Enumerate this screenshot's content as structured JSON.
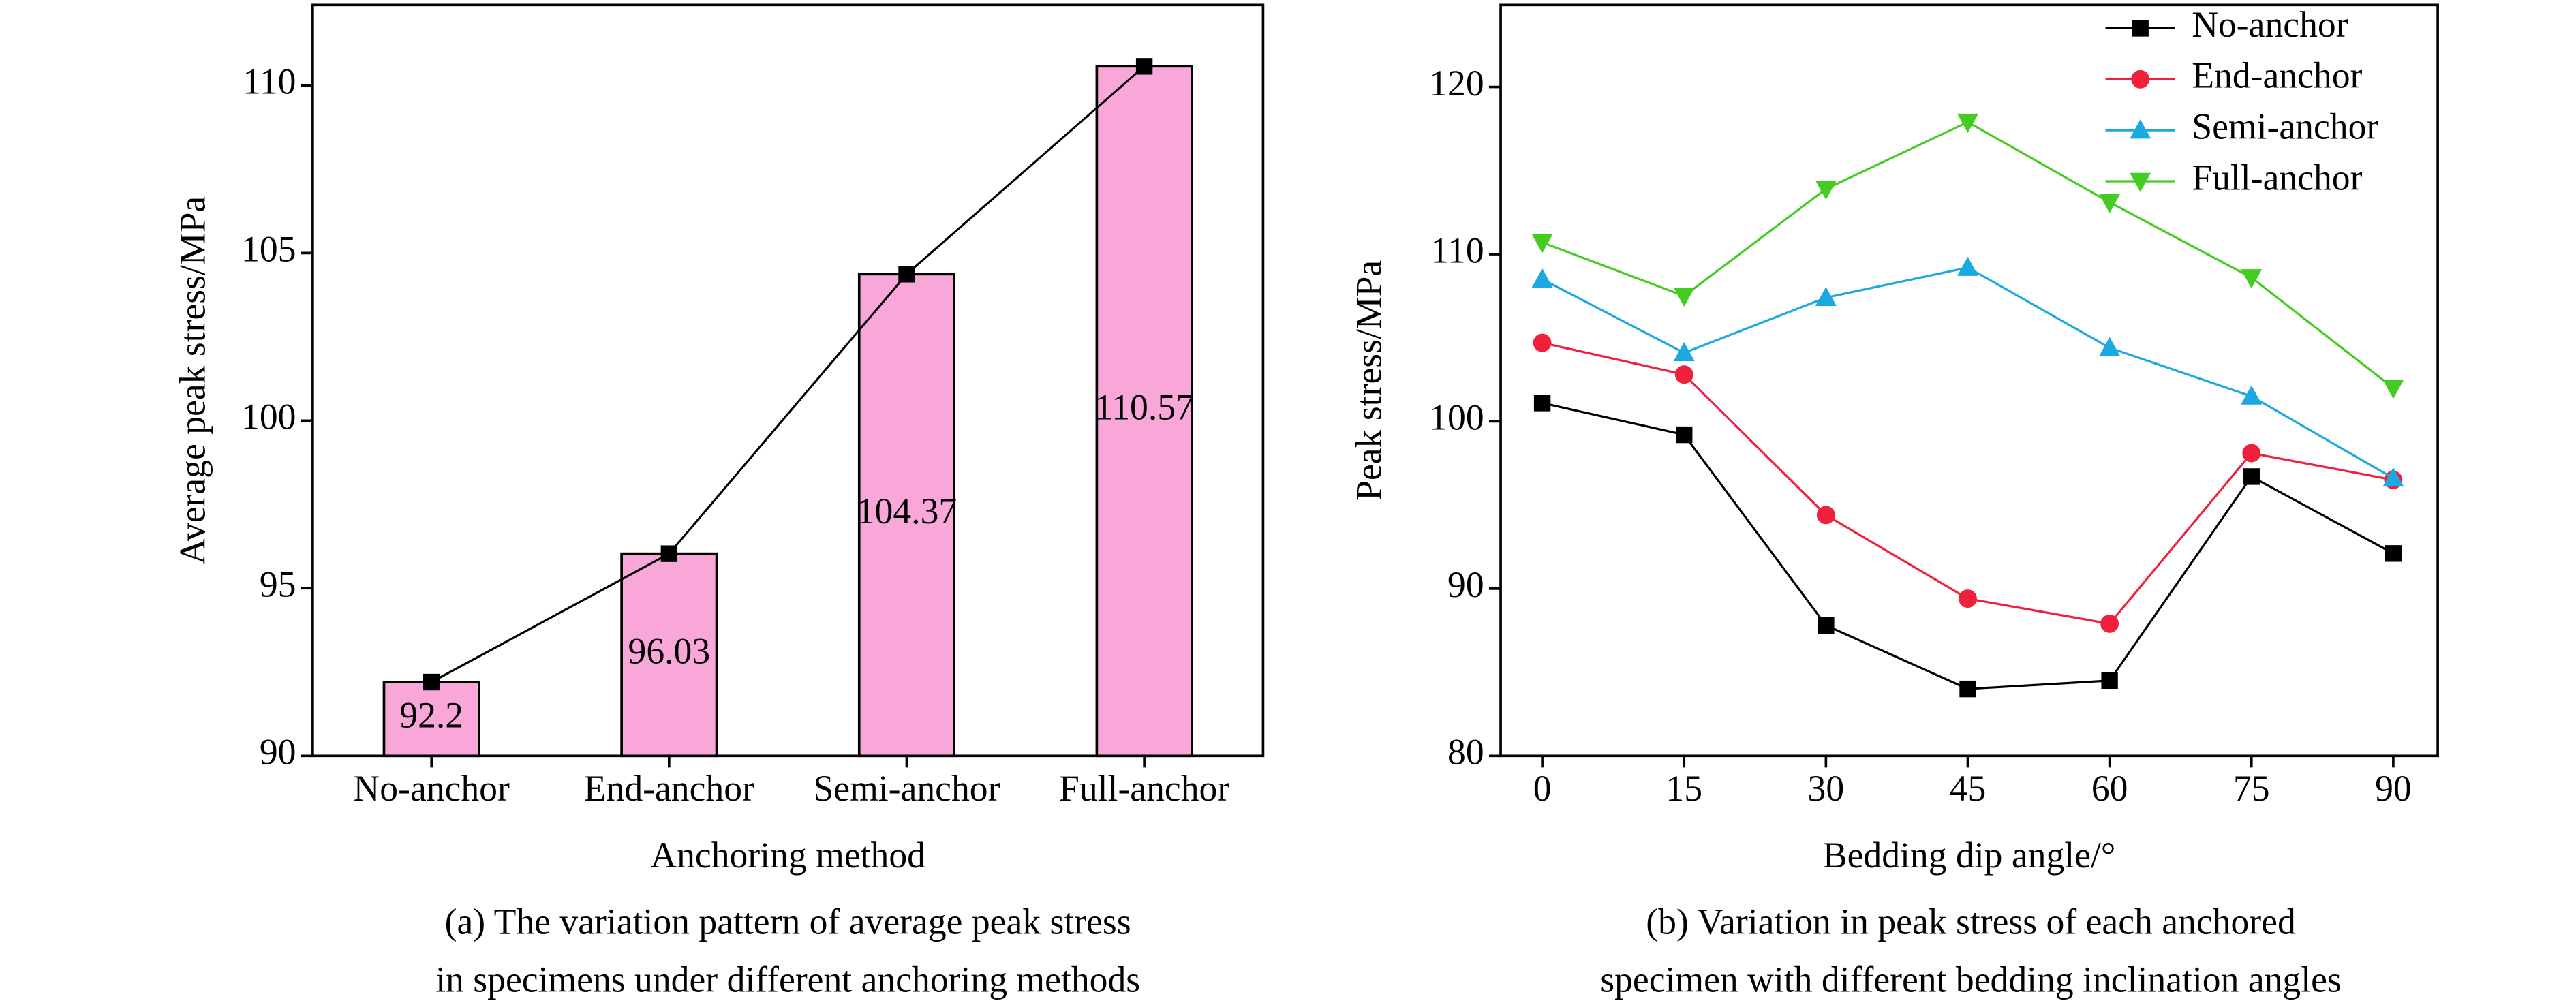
{
  "chart_data": [
    {
      "type": "bar",
      "categories": [
        "No-anchor",
        "End-anchor",
        "Semi-anchor",
        "Full-anchor"
      ],
      "values": [
        92.2,
        96.03,
        104.37,
        110.57
      ],
      "color": "#f9a6d8",
      "line_color": "#000000",
      "x_label": "Anchoring method",
      "y_label": "Average peak stress/MPa",
      "ylim": [
        90,
        112.4
      ],
      "yticks": [
        90,
        95,
        100,
        105,
        110
      ],
      "caption": [
        "(a) The variation pattern of average peak stress",
        "in specimens under different anchoring methods"
      ]
    },
    {
      "type": "line",
      "x": [
        0,
        15,
        30,
        45,
        60,
        75,
        90
      ],
      "xlim": [
        -4.4,
        94.7
      ],
      "xticks": [
        0,
        15,
        30,
        45,
        60,
        75,
        90
      ],
      "ylim": [
        80,
        124.9
      ],
      "yticks": [
        80,
        90,
        100,
        110,
        120
      ],
      "x_label": "Bedding dip angle/°",
      "y_label": "Peak stress/MPa",
      "legend": "top-right",
      "series": [
        {
          "name": "No-anchor",
          "color": "#000000",
          "marker": "square",
          "values": [
            101.1,
            99.2,
            87.8,
            84.0,
            84.5,
            96.7,
            92.1
          ]
        },
        {
          "name": "End-anchor",
          "color": "#f0203c",
          "marker": "circle",
          "values": [
            104.7,
            102.8,
            94.4,
            89.4,
            87.9,
            98.1,
            96.5
          ]
        },
        {
          "name": "Semi-anchor",
          "color": "#1ca8e0",
          "marker": "triangle-up",
          "values": [
            108.5,
            104.1,
            107.4,
            109.2,
            104.4,
            101.5,
            96.6
          ]
        },
        {
          "name": "Full-anchor",
          "color": "#44cc22",
          "marker": "triangle-down",
          "values": [
            110.7,
            107.5,
            113.9,
            117.9,
            113.1,
            108.6,
            102.0
          ]
        }
      ],
      "caption": [
        "(b) Variation in peak stress of each anchored",
        "specimen with different bedding inclination angles"
      ]
    }
  ]
}
